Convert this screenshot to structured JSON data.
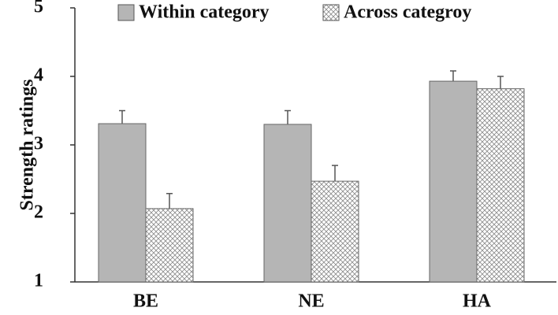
{
  "chart_data": {
    "type": "bar",
    "y_label": "Strength ratings",
    "categories": [
      "BE",
      "NE",
      "HA"
    ],
    "series": [
      {
        "name": "Within category",
        "color": "#b5b5b5",
        "fill": "solid",
        "values": [
          3.31,
          3.3,
          3.93
        ],
        "errors": [
          0.19,
          0.2,
          0.15
        ]
      },
      {
        "name": "Across categroy",
        "color": "#8a8a8a",
        "fill": "crosshatch",
        "values": [
          2.07,
          2.47,
          3.82
        ],
        "errors": [
          0.22,
          0.23,
          0.18
        ]
      }
    ],
    "ylim": [
      1,
      5
    ],
    "yticks": [
      1,
      2,
      3,
      4,
      5
    ],
    "grid": false
  }
}
